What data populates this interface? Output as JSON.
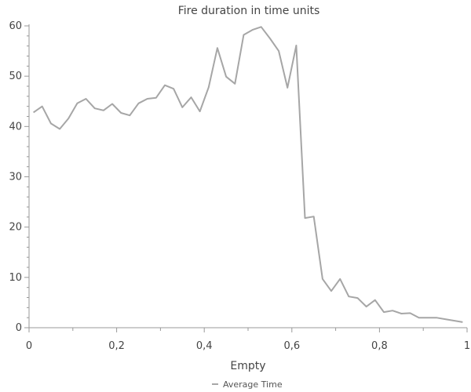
{
  "chart_data": {
    "type": "line",
    "title": "Fire duration in time units",
    "xlabel": "Empty",
    "ylabel": "",
    "xlim": [
      0,
      1
    ],
    "ylim": [
      0,
      60
    ],
    "x_ticks": [
      0,
      0.2,
      0.4,
      0.6,
      0.8,
      1
    ],
    "x_tick_labels": [
      "0",
      "0,2",
      "0,4",
      "0,6",
      "0,8",
      "1"
    ],
    "y_ticks": [
      0,
      10,
      20,
      30,
      40,
      50,
      60
    ],
    "y_tick_labels": [
      "0",
      "10",
      "20",
      "30",
      "40",
      "50",
      "60"
    ],
    "grid": false,
    "legend": "bottom-center",
    "series": [
      {
        "name": "Average Time",
        "color": "#a6a6a6",
        "x": [
          0.01,
          0.03,
          0.05,
          0.07,
          0.09,
          0.11,
          0.13,
          0.15,
          0.17,
          0.19,
          0.21,
          0.23,
          0.25,
          0.27,
          0.29,
          0.31,
          0.33,
          0.35,
          0.37,
          0.39,
          0.41,
          0.43,
          0.45,
          0.47,
          0.49,
          0.51,
          0.53,
          0.55,
          0.57,
          0.59,
          0.61,
          0.63,
          0.65,
          0.67,
          0.69,
          0.71,
          0.73,
          0.75,
          0.77,
          0.79,
          0.81,
          0.83,
          0.85,
          0.87,
          0.89,
          0.91,
          0.93,
          0.95,
          0.97,
          0.99
        ],
        "values": [
          42.8,
          44.0,
          40.6,
          39.5,
          41.6,
          44.6,
          45.5,
          43.6,
          43.2,
          44.5,
          42.7,
          42.2,
          44.6,
          45.5,
          45.7,
          48.2,
          47.5,
          43.8,
          45.8,
          43.0,
          47.8,
          55.6,
          49.9,
          48.5,
          58.2,
          59.2,
          59.8,
          57.5,
          55.0,
          47.7,
          56.1,
          21.8,
          22.1,
          9.7,
          7.3,
          9.7,
          6.2,
          5.9,
          4.2,
          5.5,
          3.1,
          3.4,
          2.8,
          2.9,
          2.0,
          2.0,
          2.0,
          1.7,
          1.4,
          1.1
        ]
      }
    ]
  }
}
